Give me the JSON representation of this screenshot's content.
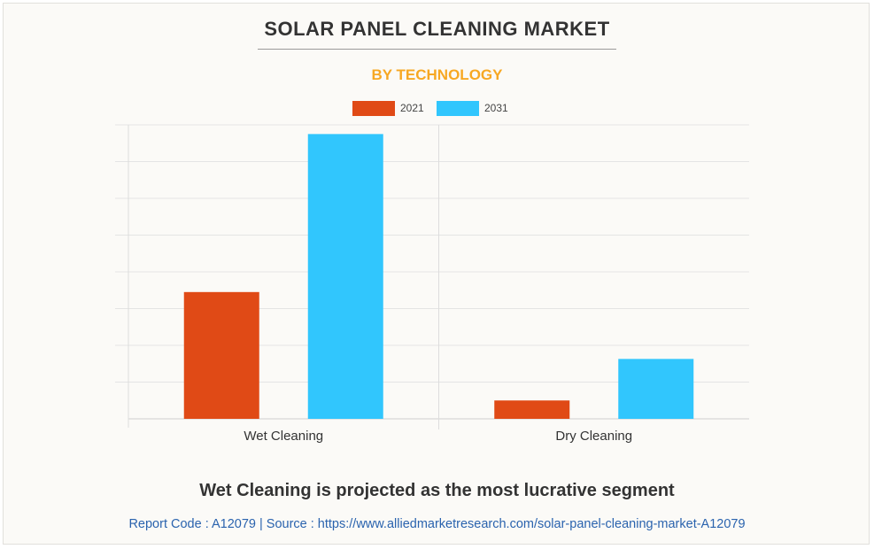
{
  "header": {
    "title": "SOLAR PANEL CLEANING MARKET",
    "subtitle": "BY TECHNOLOGY"
  },
  "colors": {
    "series_2021": "#e04a16",
    "series_2031": "#31c6fd",
    "subtitle": "#f7a823",
    "footer_link": "#2a63ae"
  },
  "chart_data": {
    "type": "bar",
    "title": "SOLAR PANEL CLEANING MARKET",
    "subtitle": "BY TECHNOLOGY",
    "categories": [
      "Wet Cleaning",
      "Dry Cleaning"
    ],
    "series": [
      {
        "name": "2021",
        "values": [
          3.45,
          0.5
        ]
      },
      {
        "name": "2031",
        "values": [
          7.75,
          1.63
        ]
      }
    ],
    "ylim": [
      0,
      8
    ],
    "grid": true,
    "legend": "top-center"
  },
  "footer": {
    "headline": "Wet Cleaning is projected as the most lucrative segment",
    "source": "Report Code : A12079  |  Source : https://www.alliedmarketresearch.com/solar-panel-cleaning-market-A12079"
  }
}
